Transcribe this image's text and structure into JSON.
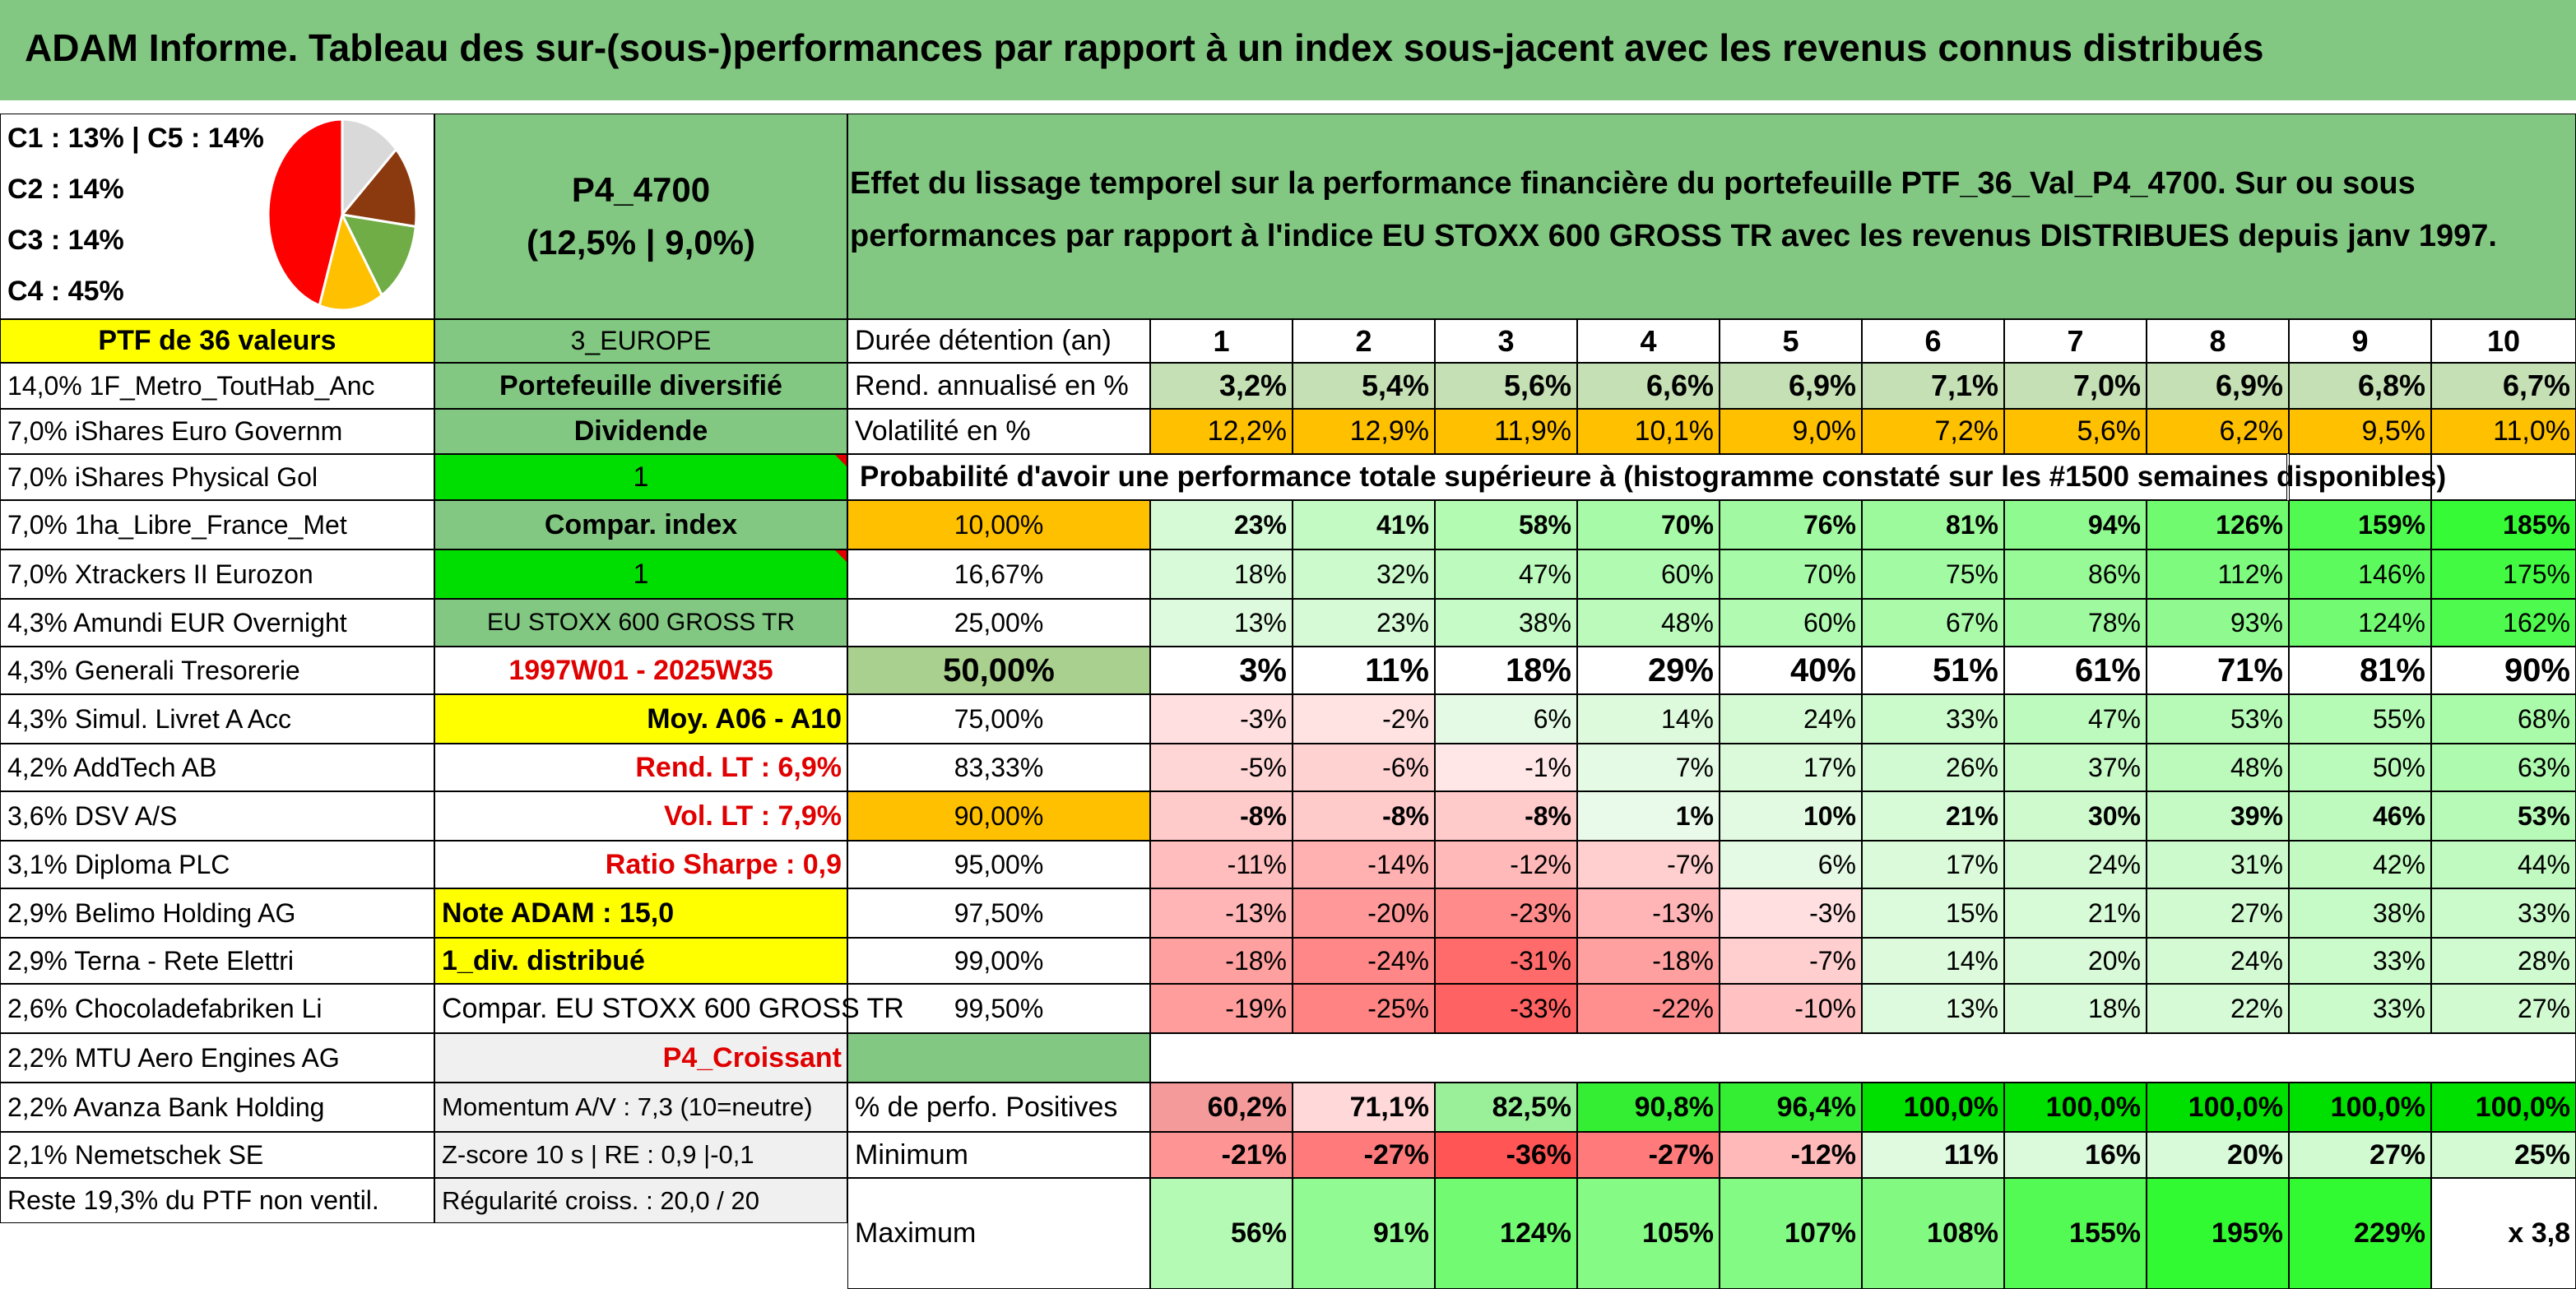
{
  "title": "ADAM Informe. Tableau des sur-(sous-)performances par rapport à un index sous-jacent avec les revenus connus distribués",
  "pie": {
    "labels": [
      "C1 : 13% | C5 : 14%",
      "C2 : 14%",
      "C3 : 14%",
      "C4 : 45%"
    ],
    "slices": [
      {
        "name": "C1",
        "value": 13,
        "color": "#d9d9d9"
      },
      {
        "name": "C5",
        "value": 14,
        "color": "#8b3a0f"
      },
      {
        "name": "C2",
        "value": 14,
        "color": "#70ad47"
      },
      {
        "name": "C3",
        "value": 14,
        "color": "#ffc000"
      },
      {
        "name": "C4",
        "value": 45,
        "color": "#ff0000"
      }
    ]
  },
  "portfolio": {
    "code": "P4_4700",
    "perf": "(12,5% | 9,0%)",
    "description": "Effet du lissage temporel sur la performance financière du portefeuille PTF_36_Val_P4_4700. Sur ou sous performances par rapport à l'indice EU STOXX 600 GROSS TR avec les revenus DISTRIBUES depuis janv 1997."
  },
  "left_col": [
    "PTF de 36 valeurs",
    "14,0% 1F_Metro_ToutHab_Anc",
    "7,0% iShares Euro Governm",
    "7,0% iShares Physical Gol",
    "7,0% 1ha_Libre_France_Met",
    "7,0% Xtrackers II Eurozon",
    "4,3% Amundi EUR Overnight",
    "4,3% Generali Tresorerie",
    "4,3% Simul. Livret A Acc",
    "4,2% AddTech AB",
    "3,6% DSV A/S",
    "3,1% Diploma PLC",
    "2,9% Belimo Holding AG",
    "2,9% Terna - Rete Elettri",
    "2,6% Chocoladefabriken Li",
    "2,2% MTU Aero Engines AG",
    "2,2% Avanza Bank Holding",
    "2,1% Nemetschek SE",
    "Reste 19,3% du PTF non ventil."
  ],
  "mid_col": [
    "3_EUROPE",
    "Portefeuille diversifié",
    "Dividende",
    "1",
    "Compar. index",
    "1",
    "EU STOXX 600 GROSS TR",
    "1997W01 - 2025W35",
    "Moy. A06 - A10",
    "Rend. LT : 6,9%",
    "Vol. LT : 7,9%",
    "Ratio Sharpe : 0,9",
    "Note ADAM : 15,0",
    "1_div. distribué",
    "Compar. EU STOXX 600 GROSS TR",
    "P4_Croissant",
    "Momentum A/V : 7,3 (10=neutre)",
    "Z-score 10 s | RE : 0,9 |-0,1",
    "Régularité croiss. : 20,0 / 20"
  ],
  "table": {
    "duration_label": "Durée détention (an)",
    "years": [
      "1",
      "2",
      "3",
      "4",
      "5",
      "6",
      "7",
      "8",
      "9",
      "10"
    ],
    "rend_label": "Rend. annualisé en %",
    "rend": [
      "3,2%",
      "5,4%",
      "5,6%",
      "6,6%",
      "6,9%",
      "7,1%",
      "7,0%",
      "6,9%",
      "6,8%",
      "6,7%"
    ],
    "vol_label": "Volatilité en %",
    "vol": [
      "12,2%",
      "12,9%",
      "11,9%",
      "10,1%",
      "9,0%",
      "7,2%",
      "5,6%",
      "6,2%",
      "9,5%",
      "11,0%"
    ],
    "proba_header": "Probabilité d'avoir une performance totale supérieure à (histogramme constaté sur les #1500 semaines disponibles)",
    "proba_rows": [
      {
        "p": "10,00%",
        "v": [
          "23%",
          "41%",
          "58%",
          "70%",
          "76%",
          "81%",
          "94%",
          "126%",
          "159%",
          "185%"
        ]
      },
      {
        "p": "16,67%",
        "v": [
          "18%",
          "32%",
          "47%",
          "60%",
          "70%",
          "75%",
          "86%",
          "112%",
          "146%",
          "175%"
        ]
      },
      {
        "p": "25,00%",
        "v": [
          "13%",
          "23%",
          "38%",
          "48%",
          "60%",
          "67%",
          "78%",
          "93%",
          "124%",
          "162%"
        ]
      },
      {
        "p": "50,00%",
        "v": [
          "3%",
          "11%",
          "18%",
          "29%",
          "40%",
          "51%",
          "61%",
          "71%",
          "81%",
          "90%"
        ]
      },
      {
        "p": "75,00%",
        "v": [
          "-3%",
          "-2%",
          "6%",
          "14%",
          "24%",
          "33%",
          "47%",
          "53%",
          "55%",
          "68%"
        ]
      },
      {
        "p": "83,33%",
        "v": [
          "-5%",
          "-6%",
          "-1%",
          "7%",
          "17%",
          "26%",
          "37%",
          "48%",
          "50%",
          "63%"
        ]
      },
      {
        "p": "90,00%",
        "v": [
          "-8%",
          "-8%",
          "-8%",
          "1%",
          "10%",
          "21%",
          "30%",
          "39%",
          "46%",
          "53%"
        ]
      },
      {
        "p": "95,00%",
        "v": [
          "-11%",
          "-14%",
          "-12%",
          "-7%",
          "6%",
          "17%",
          "24%",
          "31%",
          "42%",
          "44%"
        ]
      },
      {
        "p": "97,50%",
        "v": [
          "-13%",
          "-20%",
          "-23%",
          "-13%",
          "-3%",
          "15%",
          "21%",
          "27%",
          "38%",
          "33%"
        ]
      },
      {
        "p": "99,00%",
        "v": [
          "-18%",
          "-24%",
          "-31%",
          "-18%",
          "-7%",
          "14%",
          "20%",
          "24%",
          "33%",
          "28%"
        ]
      },
      {
        "p": "99,50%",
        "v": [
          "-19%",
          "-25%",
          "-33%",
          "-22%",
          "-10%",
          "13%",
          "18%",
          "22%",
          "33%",
          "27%"
        ]
      }
    ],
    "pos_label": "% de perfo. Positives",
    "pos": [
      "60,2%",
      "71,1%",
      "82,5%",
      "90,8%",
      "96,4%",
      "100,0%",
      "100,0%",
      "100,0%",
      "100,0%",
      "100,0%"
    ],
    "min_label": "Minimum",
    "min": [
      "-21%",
      "-27%",
      "-36%",
      "-27%",
      "-12%",
      "11%",
      "16%",
      "20%",
      "27%",
      "25%"
    ],
    "max_label": "Maximum",
    "max": [
      "56%",
      "91%",
      "124%",
      "105%",
      "107%",
      "108%",
      "155%",
      "195%",
      "229%",
      "x 3,8"
    ]
  },
  "colors": {
    "band_green": "#82c882",
    "yellow": "#ffff00",
    "lime": "#00dd00",
    "orange": "#ffc000",
    "red_text": "#e00000"
  }
}
